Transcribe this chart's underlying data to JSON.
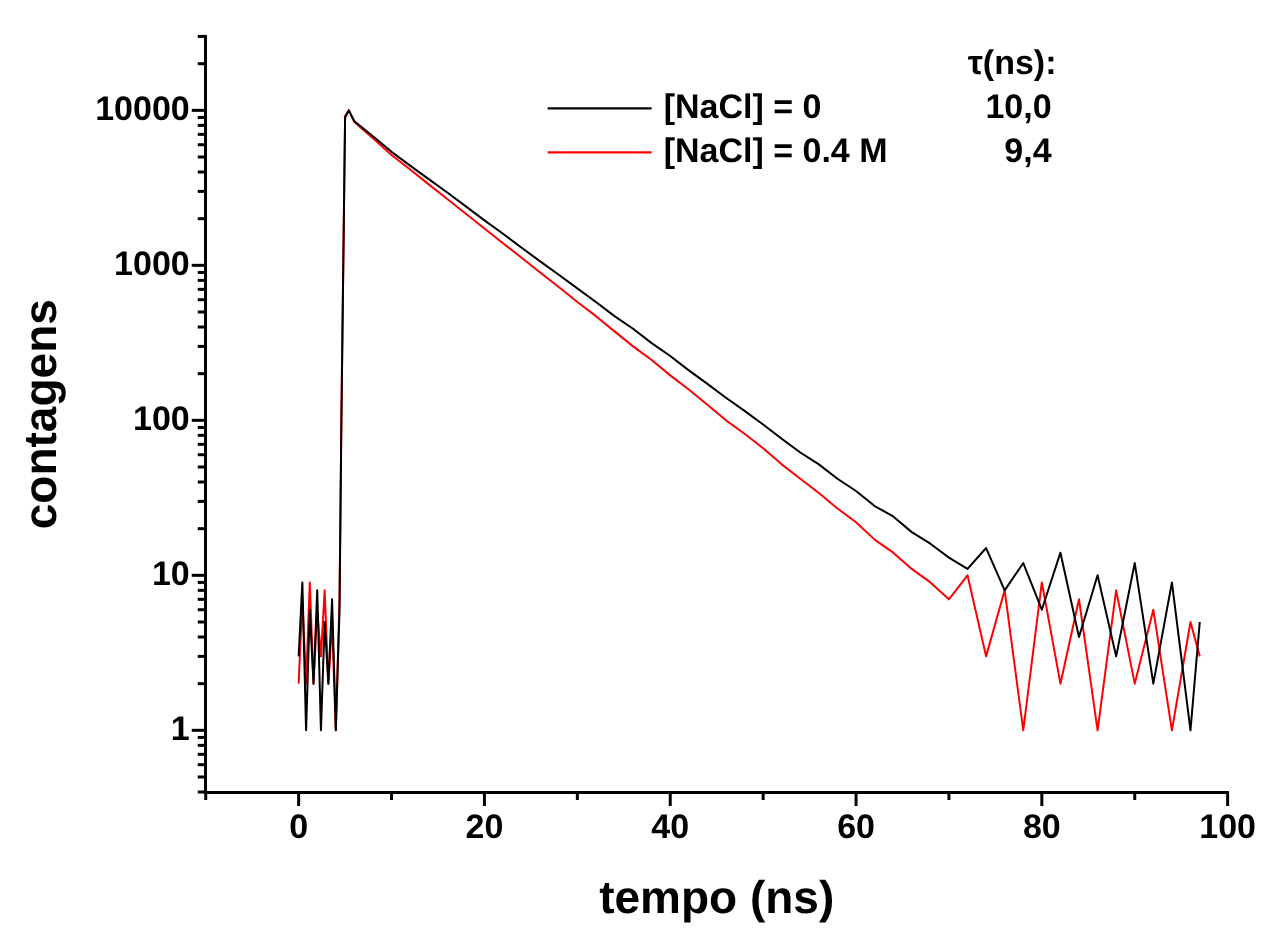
{
  "chart_data": {
    "type": "line",
    "xlabel": "tempo (ns)",
    "ylabel": "contagens",
    "log": "y",
    "grid": false,
    "legend": "top right",
    "marker": "none",
    "line_style": "solid",
    "legend_title": "τ(ns):",
    "annotations": [
      "10,0",
      "9,4"
    ],
    "x": [
      0,
      0.4,
      0.8,
      1.2,
      1.6,
      2.0,
      2.4,
      2.8,
      3.2,
      3.6,
      4.0,
      4.4,
      4.6,
      5.0,
      5.4,
      6,
      7,
      8,
      10,
      12,
      14,
      16,
      18,
      20,
      22,
      24,
      26,
      28,
      30,
      32,
      34,
      36,
      38,
      40,
      42,
      44,
      46,
      48,
      50,
      52,
      54,
      56,
      58,
      60,
      62,
      64,
      66,
      68,
      70,
      72,
      74,
      76,
      78,
      80,
      82,
      84,
      86,
      88,
      90,
      92,
      94,
      96,
      97
    ],
    "series": [
      {
        "name": "[NaCl] = 0",
        "color": "#000000",
        "values": [
          3,
          9,
          1,
          6,
          2,
          8,
          1,
          5,
          2,
          7,
          1,
          6,
          100,
          9000,
          10000,
          8500,
          7600,
          6800,
          5400,
          4400,
          3600,
          2950,
          2400,
          1950,
          1600,
          1300,
          1060,
          870,
          710,
          580,
          470,
          390,
          315,
          260,
          210,
          172,
          140,
          115,
          94,
          76,
          62,
          52,
          42,
          35,
          28,
          24,
          19,
          16,
          13,
          11,
          15,
          8,
          12,
          6,
          14,
          4,
          10,
          3,
          12,
          2,
          9,
          1,
          5
        ]
      },
      {
        "name": "[NaCl] = 0.4 M",
        "color": "#ff0000",
        "values": [
          2,
          7,
          2,
          9,
          2,
          6,
          3,
          8,
          2,
          5,
          1,
          7,
          100,
          9200,
          10000,
          8400,
          7450,
          6600,
          5150,
          4150,
          3330,
          2680,
          2150,
          1730,
          1390,
          1120,
          900,
          725,
          580,
          470,
          375,
          300,
          245,
          195,
          158,
          126,
          100,
          82,
          66,
          52,
          42,
          34,
          27,
          22,
          17,
          14,
          11,
          9,
          7,
          10,
          3,
          8,
          1,
          9,
          2,
          7,
          1,
          8,
          2,
          6,
          1,
          5,
          3
        ]
      }
    ],
    "xlim": [
      -10,
      100
    ],
    "xticks": [
      {
        "value": -10,
        "label": null
      },
      0,
      {
        "value": 10,
        "label": null
      },
      20,
      {
        "value": 30,
        "label": null
      },
      40,
      {
        "value": 50,
        "label": null
      },
      60,
      {
        "value": 70,
        "label": null
      },
      80,
      {
        "value": 90,
        "label": null
      },
      100
    ],
    "ylim": [
      0.4,
      30000
    ],
    "yticks": [
      {
        "value": 0.4,
        "label": null
      },
      {
        "value": 0.5,
        "label": null
      },
      {
        "value": 0.6,
        "label": null
      },
      {
        "value": 0.7,
        "label": null
      },
      {
        "value": 0.8,
        "label": null
      },
      {
        "value": 0.9,
        "label": null
      },
      1,
      {
        "value": 2,
        "label": null
      },
      {
        "value": 3,
        "label": null
      },
      {
        "value": 4,
        "label": null
      },
      {
        "value": 5,
        "label": null
      },
      {
        "value": 6,
        "label": null
      },
      {
        "value": 7,
        "label": null
      },
      {
        "value": 8,
        "label": null
      },
      {
        "value": 9,
        "label": null
      },
      10,
      {
        "value": 20,
        "label": null
      },
      {
        "value": 30,
        "label": null
      },
      {
        "value": 40,
        "label": null
      },
      {
        "value": 50,
        "label": null
      },
      {
        "value": 60,
        "label": null
      },
      {
        "value": 70,
        "label": null
      },
      {
        "value": 80,
        "label": null
      },
      {
        "value": 90,
        "label": null
      },
      100,
      {
        "value": 200,
        "label": null
      },
      {
        "value": 300,
        "label": null
      },
      {
        "value": 400,
        "label": null
      },
      {
        "value": 500,
        "label": null
      },
      {
        "value": 600,
        "label": null
      },
      {
        "value": 700,
        "label": null
      },
      {
        "value": 800,
        "label": null
      },
      {
        "value": 900,
        "label": null
      },
      1000,
      {
        "value": 2000,
        "label": null
      },
      {
        "value": 3000,
        "label": null
      },
      {
        "value": 4000,
        "label": null
      },
      {
        "value": 5000,
        "label": null
      },
      {
        "value": 6000,
        "label": null
      },
      {
        "value": 7000,
        "label": null
      },
      {
        "value": 8000,
        "label": null
      },
      {
        "value": 9000,
        "label": null
      },
      10000,
      {
        "value": 20000,
        "label": null
      },
      {
        "value": 30000,
        "label": null
      }
    ]
  }
}
